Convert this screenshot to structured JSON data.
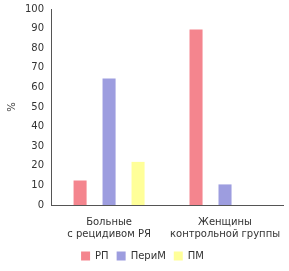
{
  "chart_data": {
    "type": "bar",
    "y_label": "%",
    "categories": [
      "Больные с рецидивом РЯ",
      "Женщины контрольной группы"
    ],
    "series": [
      {
        "name": "РП",
        "color": "#f4858e",
        "values": [
          12.5,
          89.5
        ]
      },
      {
        "name": "ПериМ",
        "color": "#9d9ddf",
        "values": [
          64.5,
          10.5
        ]
      },
      {
        "name": "ПМ",
        "color": "#ffff99",
        "values": [
          22,
          null
        ]
      }
    ],
    "ylim": [
      0,
      100
    ],
    "yticks": [
      0,
      10,
      20,
      30,
      40,
      50,
      60,
      70,
      80,
      90,
      100
    ],
    "grid": false,
    "legend": "bottom"
  }
}
